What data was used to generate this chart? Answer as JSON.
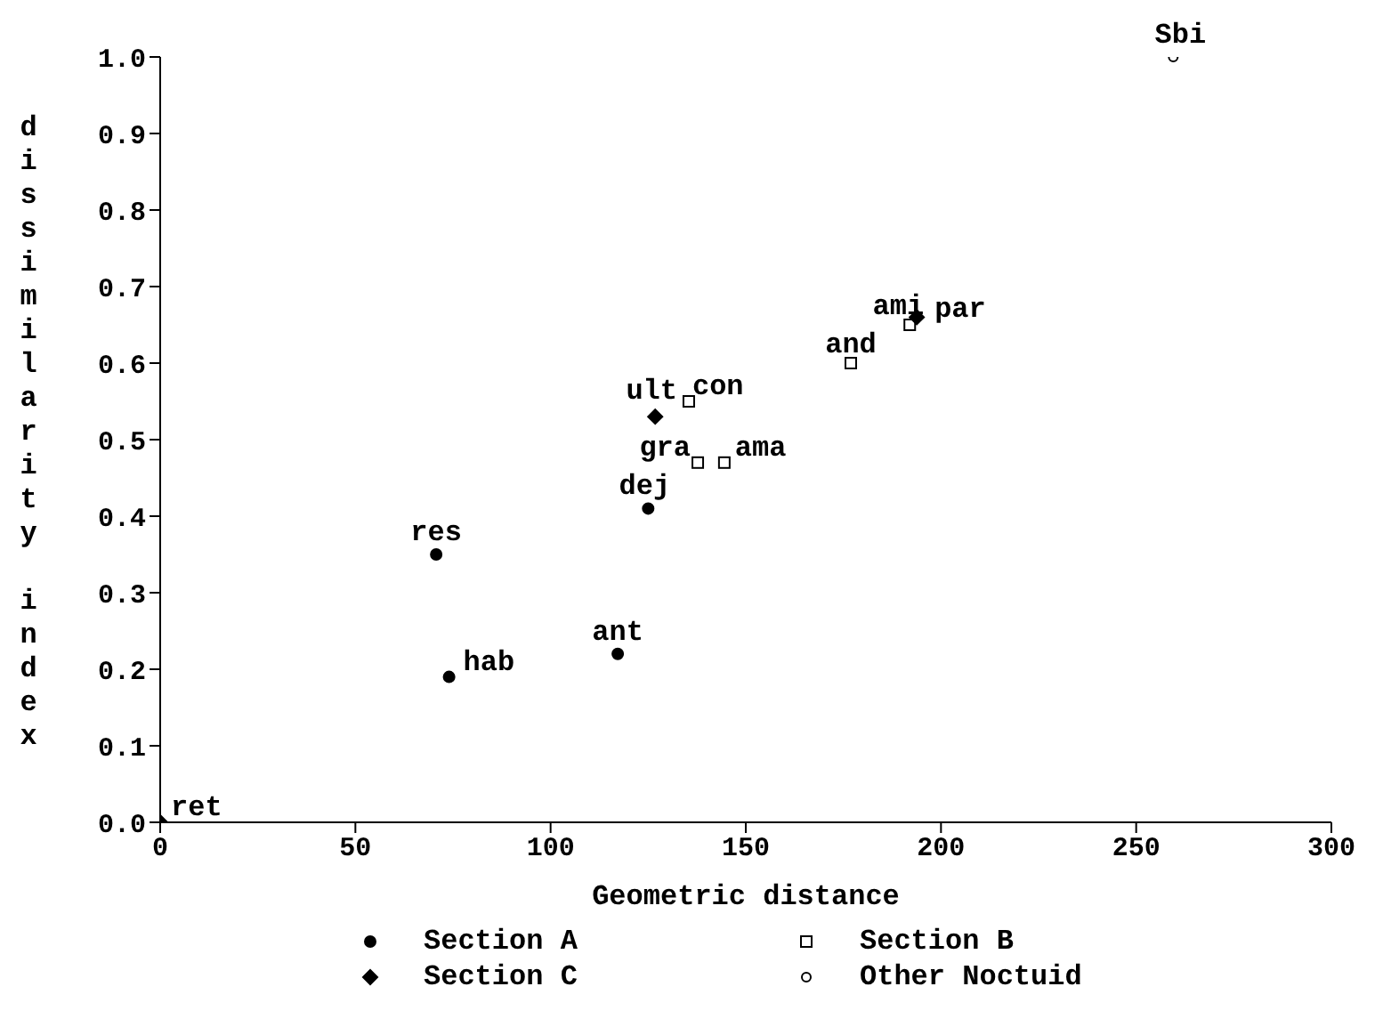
{
  "chart_data": {
    "type": "scatter",
    "xlabel": "Geometric distance",
    "ylabel": "dissimilarity index",
    "xlim": [
      0,
      300
    ],
    "xticks": [
      0,
      50,
      100,
      150,
      200,
      250,
      300
    ],
    "ylim": [
      0,
      1.0
    ],
    "yticks": [
      {
        "value": 0,
        "label": "0.0"
      },
      0.1,
      0.2,
      0.3,
      0.4,
      0.5,
      0.6,
      0.7,
      0.8,
      0.9,
      {
        "value": 1,
        "label": "1.0"
      }
    ],
    "legend": "bottom",
    "series": [
      {
        "name": "Section A",
        "color": "#000000",
        "marker": "circle",
        "x": [
          74,
          70.7,
          117.2,
          125
        ],
        "values": [
          0.19,
          0.35,
          0.22,
          0.41
        ]
      },
      {
        "name": "Section B",
        "color": "#000000",
        "marker": "square",
        "x": [
          135.4,
          137.7,
          144.5,
          176.9,
          192
        ],
        "values": [
          0.55,
          0.47,
          0.47,
          0.6,
          0.65
        ]
      },
      {
        "name": "Section C",
        "color": "#000000",
        "marker": "diamond",
        "x": [
          0,
          126.8,
          193.8
        ],
        "values": [
          0,
          0.53,
          0.66
        ]
      },
      {
        "name": "Other Noctuid",
        "color": "#000000",
        "marker": "circle",
        "x": [
          259.5
        ],
        "values": [
          1.0
        ]
      }
    ],
    "annotations": [
      {
        "text": "ret",
        "x": 0,
        "y": 0
      },
      {
        "text": "hab",
        "x": 74,
        "y": 0.19
      },
      {
        "text": "res",
        "x": 70.7,
        "y": 0.35
      },
      {
        "text": "ant",
        "x": 117.2,
        "y": 0.22
      },
      {
        "text": "dej",
        "x": 125,
        "y": 0.41
      },
      {
        "text": "ult",
        "x": 126.8,
        "y": 0.53
      },
      {
        "text": "con",
        "x": 135.4,
        "y": 0.55
      },
      {
        "text": "gra",
        "x": 137.7,
        "y": 0.47
      },
      {
        "text": "ama",
        "x": 144.5,
        "y": 0.47
      },
      {
        "text": "and",
        "x": 176.9,
        "y": 0.6
      },
      {
        "text": "ami",
        "x": 192,
        "y": 0.65
      },
      {
        "text": "par",
        "x": 193.8,
        "y": 0.66
      },
      {
        "text": "Sbi",
        "x": 259.5,
        "y": 1.0
      }
    ]
  }
}
